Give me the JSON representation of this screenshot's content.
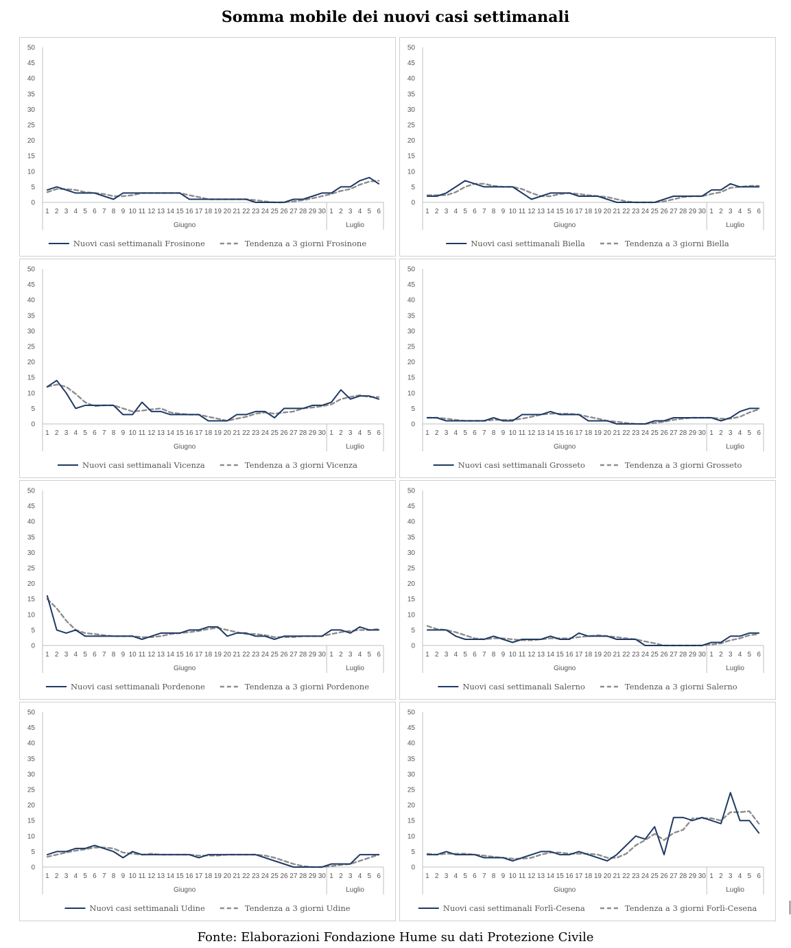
{
  "title": "Somma mobile dei nuovi casi settimanali",
  "footer": "Fonte: Elaborazioni Fondazione Hume su dati Protezione Civile",
  "colors": {
    "actual": "#1f3864",
    "trend": "#8c8c8c",
    "axis": "#bfbfbf",
    "border": "#cfcfcf"
  },
  "chart_data": [
    {
      "type": "line",
      "x_day_labels": [
        "1",
        "2",
        "3",
        "4",
        "5",
        "6",
        "7",
        "8",
        "9",
        "10",
        "11",
        "12",
        "13",
        "14",
        "15",
        "16",
        "17",
        "18",
        "19",
        "20",
        "21",
        "22",
        "23",
        "24",
        "25",
        "26",
        "27",
        "28",
        "29",
        "30",
        "1",
        "2",
        "3",
        "4",
        "5",
        "6"
      ],
      "x_month_labels": [
        "Giugno",
        "Luglio"
      ],
      "y_ticks": [
        "0",
        "5",
        "10",
        "15",
        "20",
        "25",
        "30",
        "35",
        "40",
        "45",
        "50"
      ],
      "ylim": [
        0,
        50
      ],
      "series": [
        {
          "name": "Nuovi casi settimanali Frosinone",
          "style": "solid",
          "values": [
            4,
            5,
            4,
            3,
            3,
            3,
            2,
            1,
            3,
            3,
            3,
            3,
            3,
            3,
            3,
            1,
            1,
            1,
            1,
            1,
            1,
            1,
            0,
            0,
            0,
            0,
            1,
            1,
            2,
            3,
            3,
            5,
            5,
            7,
            8,
            6
          ]
        },
        {
          "name": "Tendenza a 3 giorni Frosinone",
          "style": "dashed",
          "values": [
            3.3,
            4.3,
            4.3,
            4,
            3.3,
            3,
            2.7,
            2,
            2,
            2.3,
            3,
            3,
            3,
            3,
            3,
            2.3,
            1.7,
            1,
            1,
            1,
            1,
            1,
            0.7,
            0.3,
            0,
            0,
            0.3,
            0.7,
            1.3,
            2,
            2.7,
            3.7,
            4.3,
            5.7,
            6.7,
            7
          ]
        }
      ]
    },
    {
      "type": "line",
      "x_day_labels": [
        "1",
        "2",
        "3",
        "4",
        "5",
        "6",
        "7",
        "8",
        "9",
        "10",
        "11",
        "12",
        "13",
        "14",
        "15",
        "16",
        "17",
        "18",
        "19",
        "20",
        "21",
        "22",
        "23",
        "24",
        "25",
        "26",
        "27",
        "28",
        "29",
        "30",
        "1",
        "2",
        "3",
        "4",
        "5",
        "6"
      ],
      "x_month_labels": [
        "Giugno",
        "Luglio"
      ],
      "y_ticks": [
        "0",
        "5",
        "10",
        "15",
        "20",
        "25",
        "30",
        "35",
        "40",
        "45",
        "50"
      ],
      "ylim": [
        0,
        50
      ],
      "series": [
        {
          "name": "Nuovi casi settimanali Biella",
          "style": "solid",
          "values": [
            2,
            2,
            3,
            5,
            7,
            6,
            5,
            5,
            5,
            5,
            3,
            1,
            2,
            3,
            3,
            3,
            2,
            2,
            2,
            1,
            0,
            0,
            0,
            0,
            0,
            1,
            2,
            2,
            2,
            2,
            4,
            4,
            6,
            5,
            5,
            5
          ]
        },
        {
          "name": "Tendenza a 3 giorni Biella",
          "style": "dashed",
          "values": [
            2.3,
            2.3,
            2.3,
            3.3,
            5,
            6,
            6,
            5.3,
            5,
            5,
            4.3,
            3,
            2,
            2,
            2.7,
            3,
            2.7,
            2.3,
            2,
            1.7,
            1,
            0.3,
            0,
            0,
            0,
            0.3,
            1,
            1.7,
            2,
            2,
            2.7,
            3.3,
            4.7,
            5,
            5.3,
            5.3
          ]
        }
      ]
    },
    {
      "type": "line",
      "x_day_labels": [
        "1",
        "2",
        "3",
        "4",
        "5",
        "6",
        "7",
        "8",
        "9",
        "10",
        "11",
        "12",
        "13",
        "14",
        "15",
        "16",
        "17",
        "18",
        "19",
        "20",
        "21",
        "22",
        "23",
        "24",
        "25",
        "26",
        "27",
        "28",
        "29",
        "30",
        "1",
        "2",
        "3",
        "4",
        "5",
        "6"
      ],
      "x_month_labels": [
        "Giugno",
        "Luglio"
      ],
      "y_ticks": [
        "0",
        "5",
        "10",
        "15",
        "20",
        "25",
        "30",
        "35",
        "40",
        "45",
        "50"
      ],
      "ylim": [
        0,
        50
      ],
      "series": [
        {
          "name": "Nuovi casi settimanali Vicenza",
          "style": "solid",
          "values": [
            12,
            14,
            10,
            5,
            6,
            6,
            6,
            6,
            3,
            3,
            7,
            4,
            4,
            3,
            3,
            3,
            3,
            1,
            1,
            1,
            3,
            3,
            4,
            4,
            2,
            5,
            5,
            5,
            6,
            6,
            7,
            11,
            8,
            9,
            9,
            8
          ]
        },
        {
          "name": "Tendenza a 3 giorni Vicenza",
          "style": "dashed",
          "values": [
            12,
            12.7,
            12,
            9.7,
            7,
            5.7,
            6,
            6,
            5,
            4,
            4.3,
            4.7,
            5,
            3.7,
            3.3,
            3,
            3,
            2.3,
            1.7,
            1,
            1.7,
            2.3,
            3.3,
            3.7,
            3.3,
            3.7,
            4,
            5,
            5.3,
            5.7,
            6.3,
            8,
            8.7,
            9.3,
            8.7,
            8.7
          ]
        }
      ]
    },
    {
      "type": "line",
      "x_day_labels": [
        "1",
        "2",
        "3",
        "4",
        "5",
        "6",
        "7",
        "8",
        "9",
        "10",
        "11",
        "12",
        "13",
        "14",
        "15",
        "16",
        "17",
        "18",
        "19",
        "20",
        "21",
        "22",
        "23",
        "24",
        "25",
        "26",
        "27",
        "28",
        "29",
        "30",
        "1",
        "2",
        "3",
        "4",
        "5",
        "6"
      ],
      "x_month_labels": [
        "Giugno",
        "Luglio"
      ],
      "y_ticks": [
        "0",
        "5",
        "10",
        "15",
        "20",
        "25",
        "30",
        "35",
        "40",
        "45",
        "50"
      ],
      "ylim": [
        0,
        50
      ],
      "series": [
        {
          "name": "Nuovi casi settimanali Grosseto",
          "style": "solid",
          "values": [
            2,
            2,
            1,
            1,
            1,
            1,
            1,
            2,
            1,
            1,
            3,
            3,
            3,
            4,
            3,
            3,
            3,
            1,
            1,
            1,
            0,
            0,
            0,
            0,
            1,
            1,
            2,
            2,
            2,
            2,
            2,
            1,
            2,
            4,
            5,
            5
          ]
        },
        {
          "name": "Tendenza a 3 giorni Grosseto",
          "style": "dashed",
          "values": [
            2,
            2,
            1.7,
            1.3,
            1,
            1,
            1,
            1.3,
            1.3,
            1.3,
            1.7,
            2.3,
            3,
            3.3,
            3.3,
            3.3,
            3,
            2.3,
            1.7,
            1,
            0.7,
            0.3,
            0,
            0,
            0.3,
            0.7,
            1.3,
            1.7,
            2,
            2,
            2,
            1.7,
            1.7,
            2.3,
            3.7,
            4.7
          ]
        }
      ]
    },
    {
      "type": "line",
      "x_day_labels": [
        "1",
        "2",
        "3",
        "4",
        "5",
        "6",
        "7",
        "8",
        "9",
        "10",
        "11",
        "12",
        "13",
        "14",
        "15",
        "16",
        "17",
        "18",
        "19",
        "20",
        "21",
        "22",
        "23",
        "24",
        "25",
        "26",
        "27",
        "28",
        "29",
        "30",
        "1",
        "2",
        "3",
        "4",
        "5",
        "6"
      ],
      "x_month_labels": [
        "Giugno",
        "Luglio"
      ],
      "y_ticks": [
        "0",
        "5",
        "10",
        "15",
        "20",
        "25",
        "30",
        "35",
        "40",
        "45",
        "50"
      ],
      "ylim": [
        0,
        50
      ],
      "series": [
        {
          "name": "Nuovi casi settimanali Pordenone",
          "style": "solid",
          "values": [
            16,
            5,
            4,
            5,
            3,
            3,
            3,
            3,
            3,
            3,
            2,
            3,
            4,
            4,
            4,
            5,
            5,
            6,
            6,
            3,
            4,
            4,
            3,
            3,
            2,
            3,
            3,
            3,
            3,
            3,
            5,
            5,
            4,
            6,
            5,
            5
          ]
        },
        {
          "name": "Tendenza a 3 giorni Pordenone",
          "style": "dashed",
          "values": [
            15,
            12,
            8,
            5,
            4,
            3.7,
            3.3,
            3,
            3,
            3,
            2.7,
            2.7,
            3,
            3.7,
            4,
            4.3,
            4.7,
            5.3,
            5.7,
            5,
            4.3,
            3.7,
            3.7,
            3.3,
            2.7,
            2.7,
            2.7,
            3,
            3,
            3,
            3.7,
            4.3,
            4.7,
            5,
            5,
            5.3
          ]
        }
      ]
    },
    {
      "type": "line",
      "x_day_labels": [
        "1",
        "2",
        "3",
        "4",
        "5",
        "6",
        "7",
        "8",
        "9",
        "10",
        "11",
        "12",
        "13",
        "14",
        "15",
        "16",
        "17",
        "18",
        "19",
        "20",
        "21",
        "22",
        "23",
        "24",
        "25",
        "26",
        "27",
        "28",
        "29",
        "30",
        "1",
        "2",
        "3",
        "4",
        "5",
        "6"
      ],
      "x_month_labels": [
        "Giugno",
        "Luglio"
      ],
      "y_ticks": [
        "0",
        "5",
        "10",
        "15",
        "20",
        "25",
        "30",
        "35",
        "40",
        "45",
        "50"
      ],
      "ylim": [
        0,
        50
      ],
      "series": [
        {
          "name": "Nuovi casi settimanali Salerno",
          "style": "solid",
          "values": [
            5,
            5,
            5,
            3,
            2,
            2,
            2,
            3,
            2,
            1,
            2,
            2,
            2,
            3,
            2,
            2,
            4,
            3,
            3,
            3,
            2,
            2,
            2,
            0,
            0,
            0,
            0,
            0,
            0,
            0,
            1,
            1,
            3,
            3,
            4,
            4
          ]
        },
        {
          "name": "Tendenza a 3 giorni Salerno",
          "style": "dashed",
          "values": [
            6.3,
            5.3,
            5,
            4.3,
            3.3,
            2.3,
            2,
            2.3,
            2.3,
            2,
            1.7,
            1.7,
            2,
            2.3,
            2.3,
            2.3,
            2.7,
            3,
            3.3,
            3,
            2.7,
            2.3,
            2,
            1.3,
            0.7,
            0,
            0,
            0,
            0,
            0,
            0.3,
            0.7,
            1.7,
            2.3,
            3.3,
            3.7
          ]
        }
      ]
    },
    {
      "type": "line",
      "x_day_labels": [
        "1",
        "2",
        "3",
        "4",
        "5",
        "6",
        "7",
        "8",
        "9",
        "10",
        "11",
        "12",
        "13",
        "14",
        "15",
        "16",
        "17",
        "18",
        "19",
        "20",
        "21",
        "22",
        "23",
        "24",
        "25",
        "26",
        "27",
        "28",
        "29",
        "30",
        "1",
        "2",
        "3",
        "4",
        "5",
        "6"
      ],
      "x_month_labels": [
        "Giugno",
        "Luglio"
      ],
      "y_ticks": [
        "0",
        "5",
        "10",
        "15",
        "20",
        "25",
        "30",
        "35",
        "40",
        "45",
        "50"
      ],
      "ylim": [
        0,
        50
      ],
      "series": [
        {
          "name": "Nuovi casi settimanali Udine",
          "style": "solid",
          "values": [
            4,
            5,
            5,
            6,
            6,
            7,
            6,
            5,
            3,
            5,
            4,
            4,
            4,
            4,
            4,
            4,
            3,
            4,
            4,
            4,
            4,
            4,
            4,
            3,
            2,
            1,
            0,
            0,
            0,
            0,
            1,
            1,
            1,
            4,
            4,
            4
          ]
        },
        {
          "name": "Tendenza a 3 giorni Udine",
          "style": "dashed",
          "values": [
            3.3,
            4,
            4.7,
            5.3,
            5.7,
            6.3,
            6.3,
            6,
            4.7,
            4.3,
            4,
            4.3,
            4,
            4,
            4,
            4,
            3.7,
            3.7,
            3.7,
            4,
            4,
            4,
            4,
            3.7,
            3,
            2,
            1,
            0.3,
            0,
            0,
            0.3,
            0.7,
            1,
            2,
            3,
            4
          ]
        }
      ]
    },
    {
      "type": "line",
      "x_day_labels": [
        "1",
        "2",
        "3",
        "4",
        "5",
        "6",
        "7",
        "8",
        "9",
        "10",
        "11",
        "12",
        "13",
        "14",
        "15",
        "16",
        "17",
        "18",
        "19",
        "20",
        "21",
        "22",
        "23",
        "24",
        "25",
        "26",
        "27",
        "28",
        "29",
        "30",
        "1",
        "2",
        "3",
        "4",
        "5",
        "6"
      ],
      "x_month_labels": [
        "Giugno",
        "Luglio"
      ],
      "y_ticks": [
        "0",
        "5",
        "10",
        "15",
        "20",
        "25",
        "30",
        "35",
        "40",
        "45",
        "50"
      ],
      "ylim": [
        0,
        50
      ],
      "series": [
        {
          "name": "Nuovi casi settimanali Forlì-Cesena",
          "style": "solid",
          "values": [
            4,
            4,
            5,
            4,
            4,
            4,
            3,
            3,
            3,
            2,
            3,
            4,
            5,
            5,
            4,
            4,
            5,
            4,
            3,
            2,
            4,
            7,
            10,
            9,
            13,
            4,
            16,
            16,
            15,
            16,
            15,
            14,
            24,
            15,
            15,
            11
          ]
        },
        {
          "name": "Tendenza a 3 giorni Forlì-Cesena",
          "style": "dashed",
          "values": [
            4.3,
            4,
            4.3,
            4.3,
            4.3,
            4,
            3.7,
            3.3,
            3,
            2.7,
            2.7,
            3,
            4,
            4.7,
            4.7,
            4.3,
            4.3,
            4.3,
            4,
            3,
            3,
            4.3,
            7,
            8.7,
            10.7,
            8.7,
            11,
            12,
            15.7,
            15.7,
            15.7,
            15,
            17.7,
            17.7,
            18,
            14
          ]
        }
      ]
    }
  ]
}
